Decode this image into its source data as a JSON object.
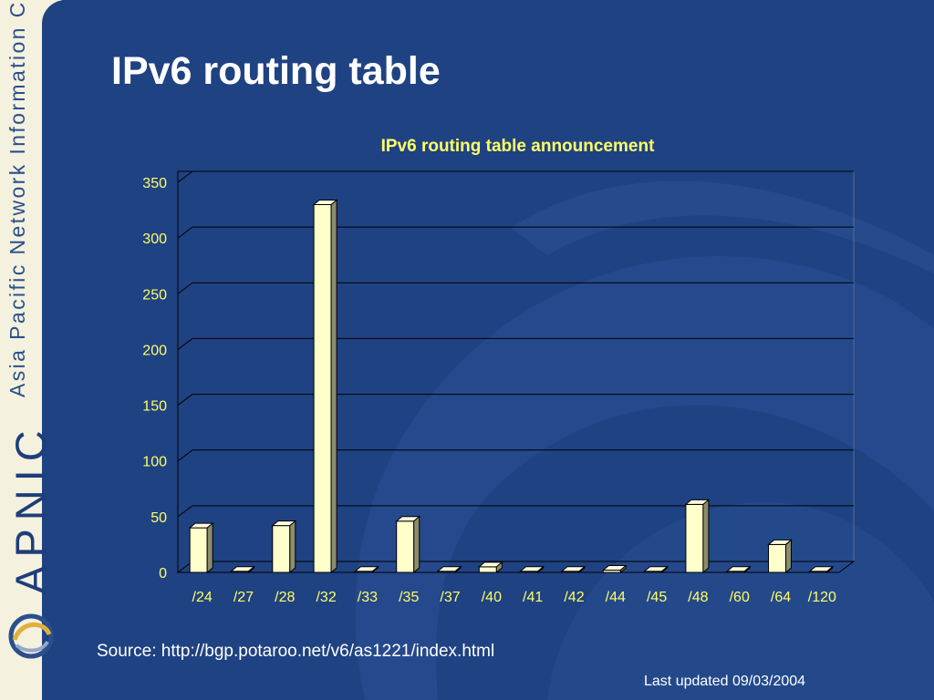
{
  "slide": {
    "title": "IPv6 routing table",
    "source": "Source: http://bgp.potaroo.net/v6/as1221/index.html",
    "last_updated": "Last updated 09/03/2004"
  },
  "branding": {
    "organization": "Asia Pacific Network Information Centre",
    "logo_text": "APNIC",
    "logo_icon": "apnic-swirl-icon"
  },
  "colors": {
    "background": "#1f4282",
    "sidebar": "#f4f1df",
    "bar_face": "#ffffcc",
    "bar_side": "#8c8c6e",
    "chart_title": "#ffff66",
    "tick_labels": "#ffff66"
  },
  "chart_data": {
    "type": "bar",
    "title": "IPv6 routing table announcement",
    "xlabel": "",
    "ylabel": "",
    "categories": [
      "/24",
      "/27",
      "/28",
      "/32",
      "/33",
      "/35",
      "/37",
      "/40",
      "/41",
      "/42",
      "/44",
      "/45",
      "/48",
      "/60",
      "/64",
      "/120"
    ],
    "values": [
      40,
      1,
      42,
      330,
      1,
      46,
      1,
      5,
      1,
      1,
      2,
      1,
      61,
      1,
      25,
      1
    ],
    "ylim": [
      0,
      350
    ],
    "yticks": [
      0,
      50,
      100,
      150,
      200,
      250,
      300,
      350
    ],
    "grid": true,
    "legend": "none",
    "style": "3d-column"
  }
}
